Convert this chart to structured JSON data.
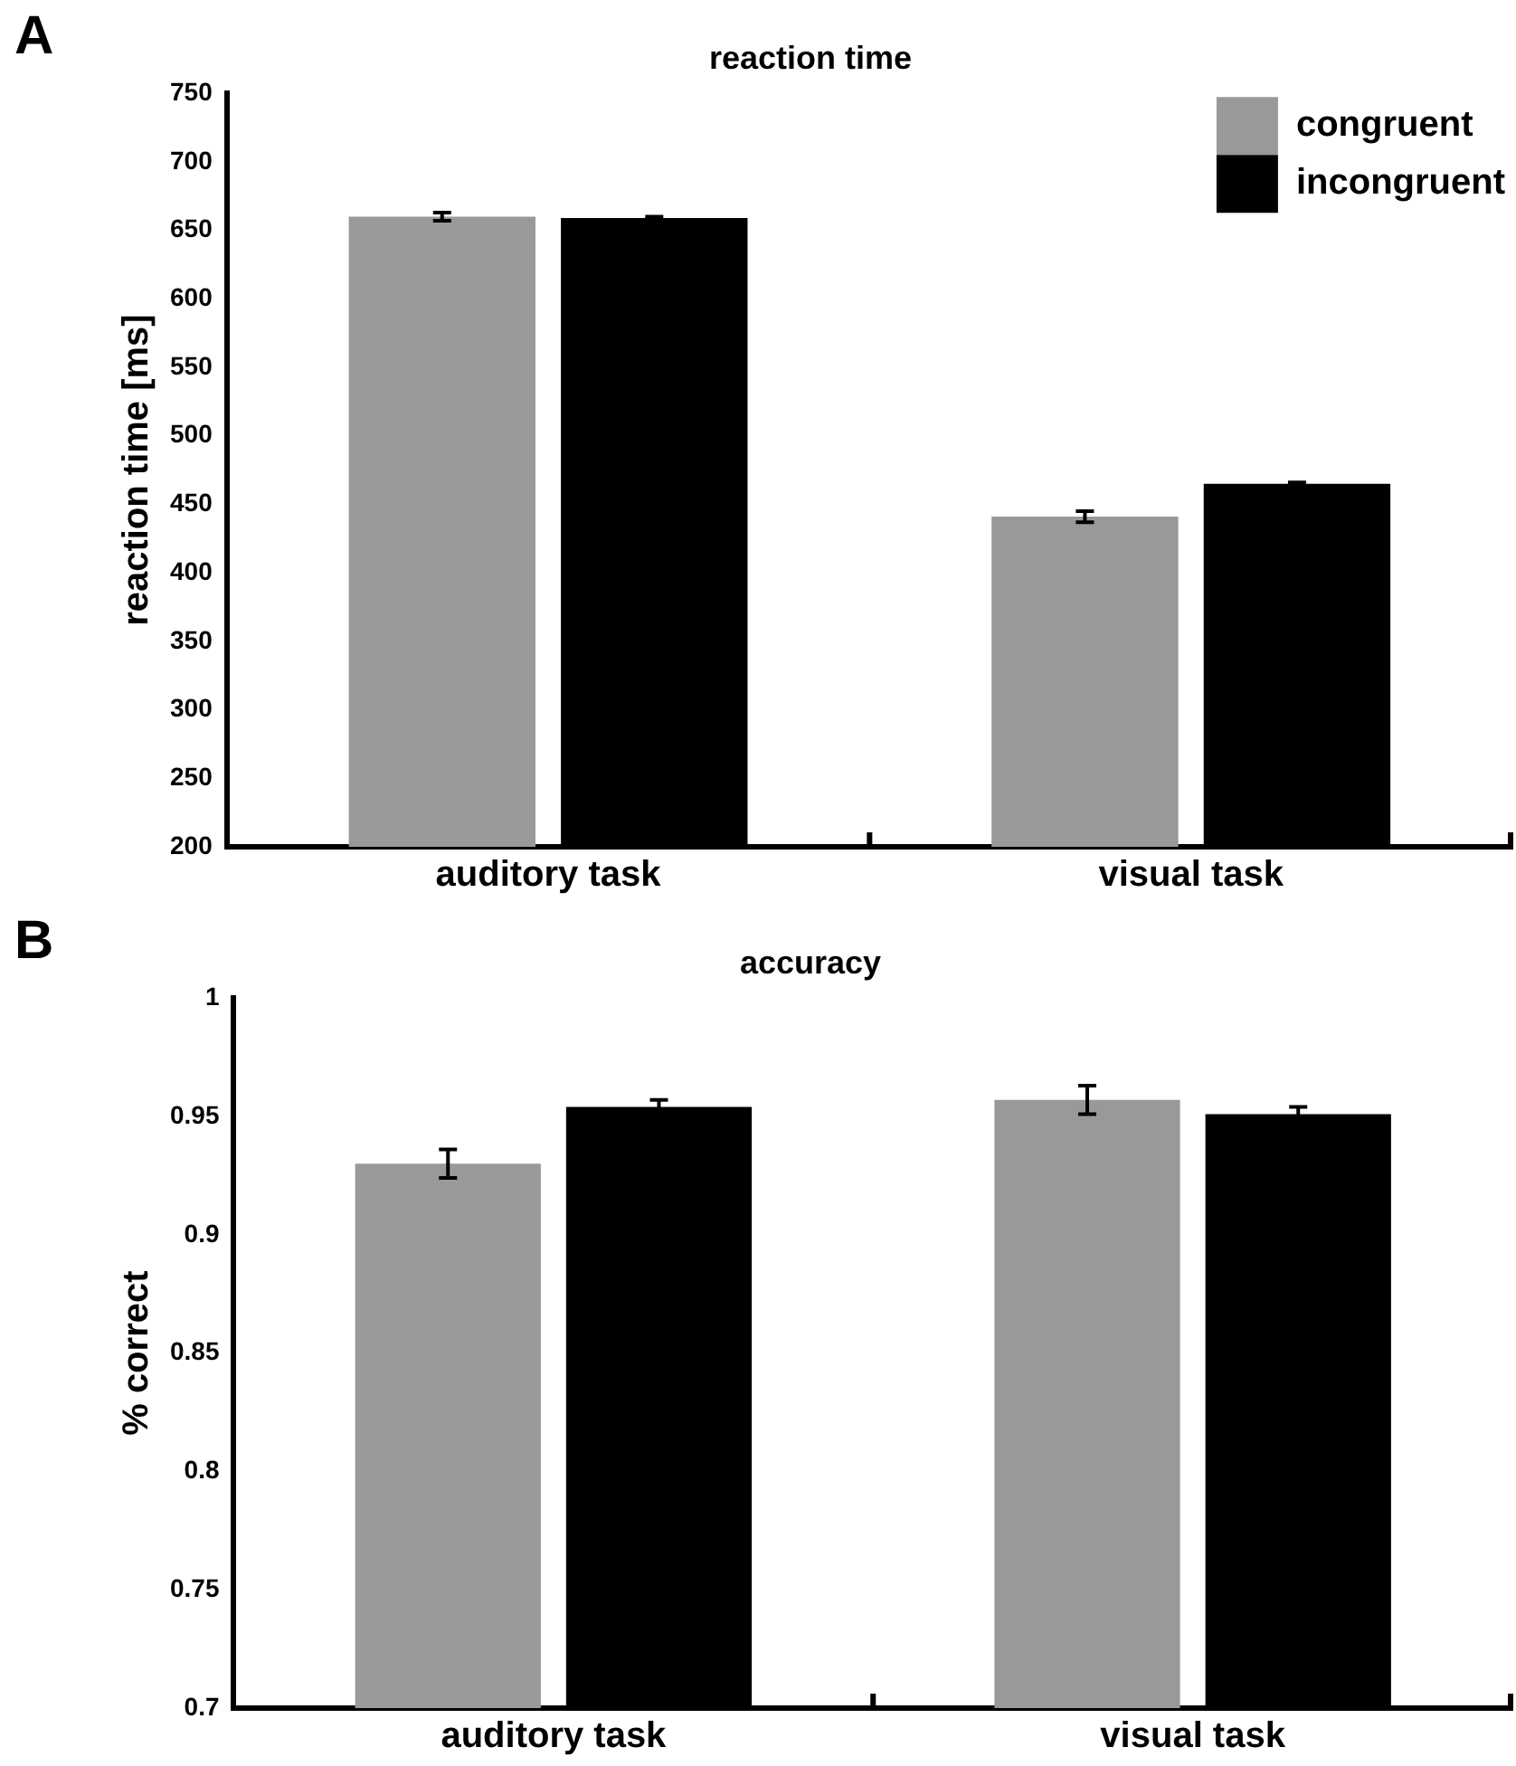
{
  "chart_data": [
    {
      "type": "bar",
      "title": "reaction time",
      "ylabel": "reaction time [ms]",
      "annotations": [
        "A"
      ],
      "categories": [
        "auditory task",
        "visual task"
      ],
      "series": [
        {
          "name": "congruent",
          "color": "#999999",
          "values": [
            660,
            441
          ],
          "errors": [
            3,
            4
          ]
        },
        {
          "name": "incongruent",
          "color": "#000000",
          "values": [
            659,
            465
          ],
          "errors": [
            1,
            1
          ]
        }
      ],
      "ylim": [
        200,
        750
      ],
      "yticks": [
        200,
        250,
        300,
        350,
        400,
        450,
        500,
        550,
        600,
        650,
        700,
        750
      ],
      "grid": false,
      "legend": "top right"
    },
    {
      "type": "bar",
      "title": "accuracy",
      "ylabel": "% correct",
      "annotations": [
        "B"
      ],
      "categories": [
        "auditory task",
        "visual task"
      ],
      "series": [
        {
          "color": "#999999",
          "values": [
            0.93,
            0.957
          ],
          "errors": [
            0.006,
            0.006
          ]
        },
        {
          "color": "#000000",
          "values": [
            0.954,
            0.951
          ],
          "errors": [
            0.003,
            0.003
          ]
        }
      ],
      "ylim": [
        0.7,
        1
      ],
      "yticks": [
        0.7,
        0.75,
        0.8,
        0.85,
        0.9,
        0.95,
        1
      ],
      "grid": false
    }
  ]
}
